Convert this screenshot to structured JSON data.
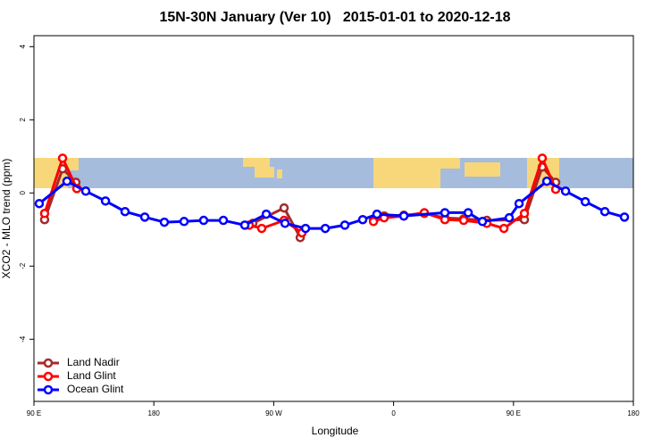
{
  "chart_data": {
    "type": "line",
    "title": "15N-30N January (Ver 10)   2015-01-01 to 2020-12-18",
    "xlabel": "Longitude",
    "ylabel": "XCO2 - MLO trend (ppm)",
    "xlim": [
      90,
      540
    ],
    "ylim": [
      -5.7,
      4.3
    ],
    "xticks": [
      {
        "value": 90,
        "label": "90 E"
      },
      {
        "value": 180,
        "label": "180"
      },
      {
        "value": 270,
        "label": "90 W"
      },
      {
        "value": 360,
        "label": "0"
      },
      {
        "value": 450,
        "label": "90 E"
      },
      {
        "value": 540,
        "label": "180"
      }
    ],
    "yticks": [
      -4,
      -2,
      0,
      2,
      4
    ],
    "grid": false,
    "legend": "lower left",
    "series": [
      {
        "name": "Land Nadir",
        "color": "#a52a2a",
        "x": [
          98.0,
          111.5,
          121.5,
          null,
          254.3,
          277.8,
          289.9,
          null,
          344.9,
          352.9,
          367.7,
          383.1,
          398.5,
          412.6,
          430.0,
          458.2,
          471.6,
          481.7
        ],
        "values": [
          -0.73,
          0.66,
          0.29,
          null,
          -0.83,
          -0.41,
          -1.22,
          null,
          -0.73,
          -0.63,
          -0.61,
          -0.56,
          -0.68,
          -0.71,
          -0.75,
          -0.73,
          0.71,
          0.29
        ]
      },
      {
        "name": "Land Glint",
        "color": "#ff0000",
        "x": [
          98.0,
          111.5,
          122.2,
          null,
          251.6,
          261.0,
          277.8,
          291.2,
          null,
          344.9,
          352.9,
          367.7,
          383.1,
          398.5,
          412.6,
          430.0,
          442.8,
          458.2,
          471.6,
          481.7
        ],
        "values": [
          -0.56,
          0.95,
          0.12,
          null,
          -0.88,
          -0.97,
          -0.75,
          -1.09,
          null,
          -0.78,
          -0.68,
          -0.63,
          -0.54,
          -0.73,
          -0.75,
          -0.83,
          -0.97,
          -0.56,
          0.95,
          0.1
        ]
      },
      {
        "name": "Ocean Glint",
        "color": "#0000ff",
        "x": [
          94.0,
          114.8,
          128.9,
          143.7,
          158.4,
          173.2,
          187.9,
          202.7,
          217.4,
          232.2,
          248.3,
          264.4,
          278.5,
          293.9,
          308.7,
          323.4,
          336.8,
          347.5,
          367.7,
          398.5,
          416.0,
          426.7,
          446.8,
          454.2,
          475.0,
          489.1,
          503.9,
          518.6,
          533.3
        ],
        "values": [
          -0.29,
          0.32,
          0.05,
          -0.22,
          -0.51,
          -0.66,
          -0.8,
          -0.78,
          -0.75,
          -0.75,
          -0.88,
          -0.58,
          -0.83,
          -0.97,
          -0.97,
          -0.88,
          -0.73,
          -0.58,
          -0.63,
          -0.54,
          -0.54,
          -0.78,
          -0.68,
          -0.29,
          0.32,
          0.05,
          -0.24,
          -0.51,
          -0.66
        ]
      }
    ]
  }
}
